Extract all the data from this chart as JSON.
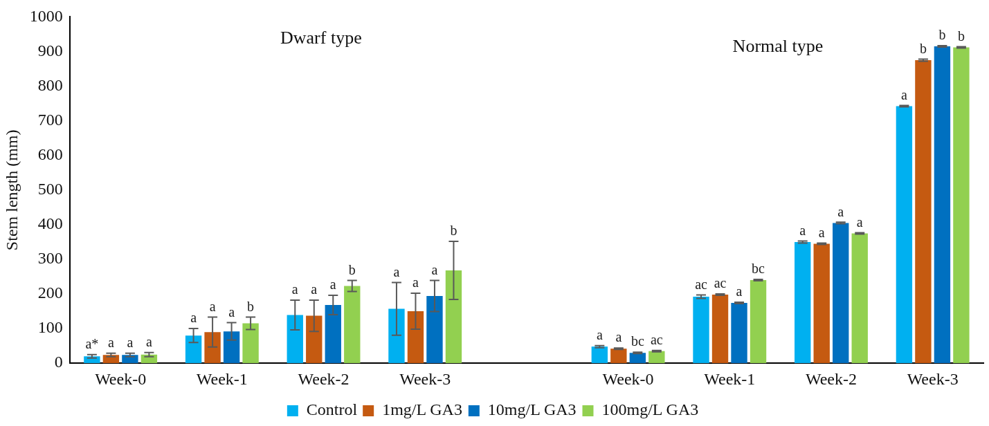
{
  "chart_data": {
    "type": "bar",
    "ylabel": "Stem length (mm)",
    "categories": [
      "Week-0",
      "Week-1",
      "Week-2",
      "Week-3",
      null,
      "Week-0",
      "Week-1",
      "Week-2",
      "Week-3"
    ],
    "series": [
      {
        "name": "Control",
        "color": "#00b0f0",
        "values": [
          20,
          80,
          139,
          157,
          null,
          48,
          192,
          350,
          742
        ],
        "errors": [
          5,
          20,
          43,
          76,
          null,
          3,
          5,
          3,
          2
        ],
        "value_labels": [
          "a*",
          "a",
          "a",
          "a",
          null,
          "a",
          "ac",
          "a",
          "a"
        ]
      },
      {
        "name": "1mg/L GA3",
        "color": "#c55a11",
        "values": [
          24,
          90,
          137,
          150,
          null,
          42,
          198,
          345,
          875
        ],
        "errors": [
          5,
          43,
          45,
          52,
          null,
          2,
          2,
          2,
          3
        ],
        "value_labels": [
          "a",
          "a",
          "a",
          "a",
          null,
          "a",
          "ac",
          "a",
          "b"
        ]
      },
      {
        "name": "10mg/L GA3",
        "color": "#0070c0",
        "values": [
          24,
          92,
          168,
          194,
          null,
          30,
          174,
          405,
          915
        ],
        "errors": [
          5,
          25,
          28,
          45,
          null,
          2,
          2,
          2,
          2
        ],
        "value_labels": [
          "a",
          "a",
          "a",
          "a",
          null,
          "bc",
          "a",
          "a",
          "b"
        ]
      },
      {
        "name": "100mg/L GA3",
        "color": "#92d050",
        "values": [
          25,
          115,
          223,
          268,
          null,
          35,
          240,
          375,
          912
        ],
        "errors": [
          6,
          18,
          16,
          84,
          null,
          2,
          2,
          2,
          2
        ],
        "value_labels": [
          "a",
          "b",
          "b",
          "b",
          null,
          "ac",
          "bc",
          "a",
          "b"
        ]
      }
    ],
    "ylim": [
      0,
      1000
    ],
    "yticks": [
      0,
      100,
      200,
      300,
      400,
      500,
      600,
      700,
      800,
      900,
      1000
    ],
    "grid": false,
    "legend": "bottom",
    "annotations": [
      "Dwarf type",
      "Normal type"
    ]
  }
}
